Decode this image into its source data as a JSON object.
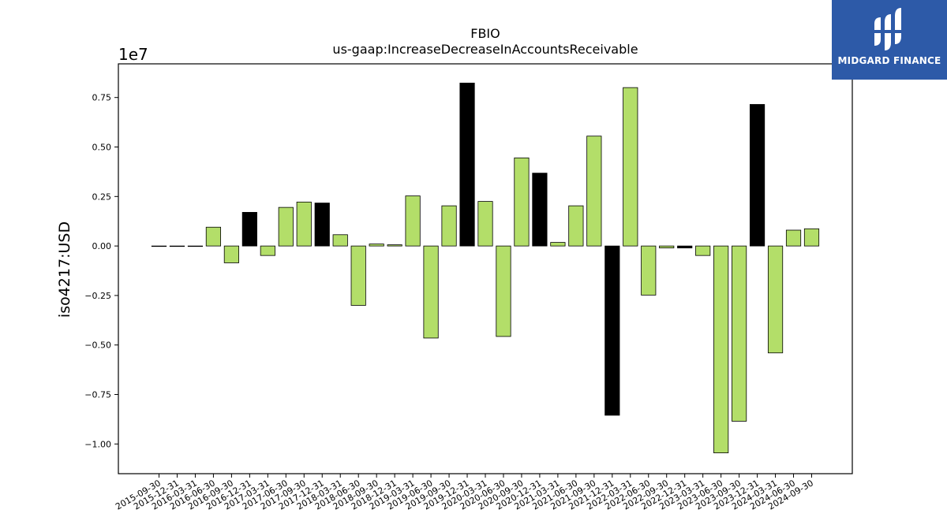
{
  "brand": {
    "name": "MIDGARD FINANCE",
    "colors": {
      "background": "#2d5aa8",
      "text": "#ffffff"
    },
    "icon": "midgard-logo-icon"
  },
  "chart_data": {
    "type": "bar",
    "title": "FBIO",
    "subtitle": "us-gaap:IncreaseDecreaseInAccountsReceivable",
    "xlabel": "",
    "ylabel": "iso4217:USD",
    "y_scale_label": "1e7",
    "y_scale": 10000000,
    "ylim": [
      -1.15,
      0.92
    ],
    "yticks": [
      -1.0,
      -0.75,
      -0.5,
      -0.25,
      0.0,
      0.25,
      0.5,
      0.75
    ],
    "ytick_labels": [
      "−1.00",
      "−0.75",
      "−0.50",
      "−0.25",
      "0.00",
      "0.25",
      "0.50",
      "0.75"
    ],
    "grid": false,
    "colors": {
      "default": "#b3de69",
      "highlight": "#000000",
      "edge": "#000000"
    },
    "categories": [
      "2015-09-30",
      "2015-12-31",
      "2016-03-31",
      "2016-06-30",
      "2016-09-30",
      "2016-12-31",
      "2017-03-31",
      "2017-06-30",
      "2017-09-30",
      "2017-12-31",
      "2018-03-31",
      "2018-06-30",
      "2018-09-30",
      "2018-12-31",
      "2019-03-31",
      "2019-06-30",
      "2019-09-30",
      "2019-12-31",
      "2020-03-31",
      "2020-06-30",
      "2020-09-30",
      "2020-12-31",
      "2021-03-31",
      "2021-06-30",
      "2021-09-30",
      "2021-12-31",
      "2022-03-31",
      "2022-06-30",
      "2022-09-30",
      "2022-12-31",
      "2023-03-31",
      "2023-06-30",
      "2023-09-30",
      "2023-12-31",
      "2024-03-31",
      "2024-06-30",
      "2024-09-30"
    ],
    "values": [
      0.0,
      0.0,
      0.0,
      0.095,
      -0.085,
      0.17,
      -0.048,
      0.195,
      0.222,
      0.217,
      0.057,
      -0.3,
      0.01,
      0.006,
      0.253,
      -0.465,
      0.203,
      0.823,
      0.225,
      -0.457,
      0.445,
      0.368,
      0.018,
      0.203,
      0.555,
      -0.855,
      0.8,
      -0.248,
      -0.01,
      -0.01,
      -0.048,
      -1.045,
      -0.885,
      0.715,
      -0.54,
      0.08,
      0.087
    ],
    "highlight": [
      false,
      false,
      false,
      false,
      false,
      true,
      false,
      false,
      false,
      true,
      false,
      false,
      false,
      false,
      false,
      false,
      false,
      true,
      false,
      false,
      false,
      true,
      false,
      false,
      false,
      true,
      false,
      false,
      false,
      true,
      false,
      false,
      false,
      true,
      false,
      false,
      false
    ]
  }
}
